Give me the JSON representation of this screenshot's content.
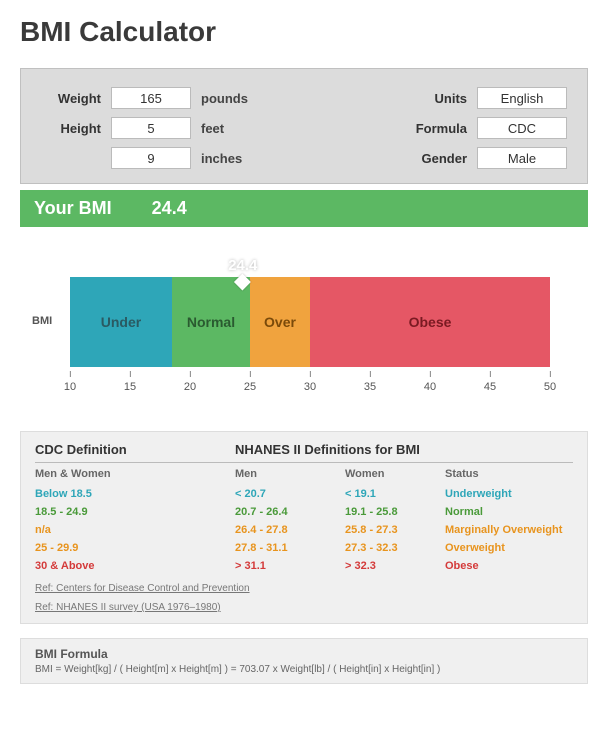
{
  "title": "BMI Calculator",
  "inputs": {
    "weight_label": "Weight",
    "weight_value": "165",
    "weight_unit": "pounds",
    "height_label": "Height",
    "height_feet": "5",
    "height_feet_unit": "feet",
    "height_inches": "9",
    "height_inches_unit": "inches",
    "units_label": "Units",
    "units_value": "English",
    "formula_label": "Formula",
    "formula_value": "CDC",
    "gender_label": "Gender",
    "gender_value": "Male"
  },
  "result": {
    "label": "Your BMI",
    "value": "24.4"
  },
  "chart": {
    "ylabel": "BMI",
    "xmin": 10,
    "xmax": 50,
    "ticks": [
      10,
      15,
      20,
      25,
      30,
      35,
      40,
      45,
      50
    ],
    "marker_value": 24.4,
    "marker_label": "24.4",
    "segments": [
      {
        "from": 10,
        "to": 18.5,
        "label": "Under",
        "color": "#2ea6b8",
        "textcolor": "#2a5a62"
      },
      {
        "from": 18.5,
        "to": 25,
        "label": "Normal",
        "color": "#5cb863",
        "textcolor": "#2a5a30"
      },
      {
        "from": 25,
        "to": 30,
        "label": "Over",
        "color": "#f0a33e",
        "textcolor": "#7a4a0a"
      },
      {
        "from": 30,
        "to": 50,
        "label": "Obese",
        "color": "#e55765",
        "textcolor": "#7a1a22"
      }
    ]
  },
  "defs": {
    "cdc_head": "CDC Definition",
    "nhanes_head": "NHANES II Definitions for BMI",
    "sub_a": "Men & Women",
    "sub_b": "Men",
    "sub_c": "Women",
    "sub_d": "Status",
    "rows": [
      {
        "a": "Below 18.5",
        "b": "< 20.7",
        "c": "< 19.1",
        "d": "Underweight",
        "color": "#2ea6b8"
      },
      {
        "a": "18.5 - 24.9",
        "b": "20.7 - 26.4",
        "c": "19.1 - 25.8",
        "d": "Normal",
        "color": "#4a9a3a"
      },
      {
        "a": "n/a",
        "b": "26.4 - 27.8",
        "c": "25.8 - 27.3",
        "d": "Marginally Overweight",
        "color": "#e8941e"
      },
      {
        "a": "25 - 29.9",
        "b": "27.8 - 31.1",
        "c": "27.3 - 32.3",
        "d": "Overweight",
        "color": "#e8941e"
      },
      {
        "a": "30 & Above",
        "b": "> 31.1",
        "c": "> 32.3",
        "d": "Obese",
        "color": "#d43a3a"
      }
    ],
    "ref1": "Ref: Centers for Disease Control and Prevention",
    "ref2": "Ref: NHANES II survey (USA 1976–1980)"
  },
  "formula": {
    "title": "BMI Formula",
    "text": "BMI = Weight[kg] / ( Height[m] x Height[m] ) = 703.07 x Weight[lb] / ( Height[in] x Height[in] )"
  },
  "colors": {
    "result_bar": "#5cb863"
  }
}
